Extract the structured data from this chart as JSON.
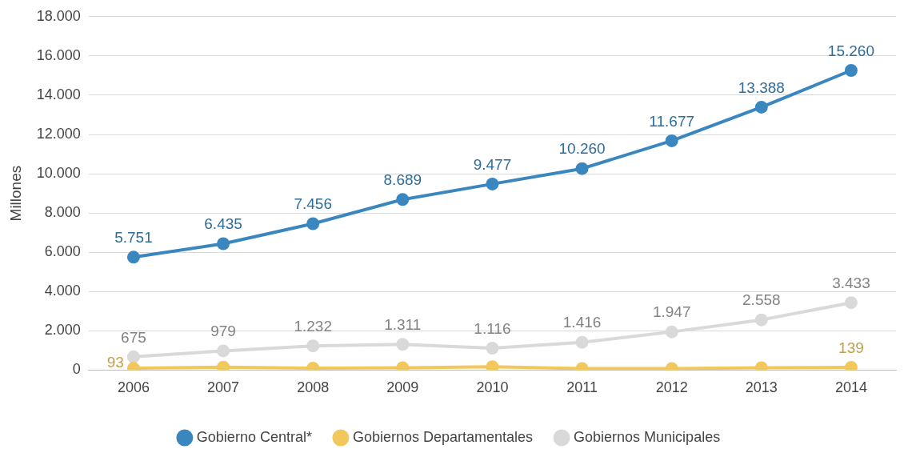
{
  "chart_data": {
    "type": "line",
    "ylabel": "Millones",
    "categories": [
      "2006",
      "2007",
      "2008",
      "2009",
      "2010",
      "2011",
      "2012",
      "2013",
      "2014"
    ],
    "ylim": [
      0,
      18000
    ],
    "yticks": [
      0,
      {
        "value": 2000,
        "label": "2.000"
      },
      {
        "value": 4000,
        "label": "4.000"
      },
      {
        "value": 6000,
        "label": "6.000"
      },
      {
        "value": 8000,
        "label": "8.000"
      },
      {
        "value": 10000,
        "label": "10.000"
      },
      {
        "value": 12000,
        "label": "12.000"
      },
      {
        "value": 14000,
        "label": "14.000"
      },
      {
        "value": 16000,
        "label": "16.000"
      },
      {
        "value": 18000,
        "label": "18.000"
      }
    ],
    "grid": "y",
    "legend": "bottom",
    "marker": "circle",
    "line_style": "solid",
    "series": [
      {
        "name": "Gobierno Central*",
        "color": "#3a87c0",
        "values": [
          5751,
          6435,
          7456,
          8689,
          9477,
          10260,
          11677,
          13388,
          15260
        ],
        "value_labels": [
          "5.751",
          "6.435",
          "7.456",
          "8.689",
          "9.477",
          "10.260",
          "11.677",
          "13.388",
          "15.260"
        ]
      },
      {
        "name": "Gobiernos Departamentales",
        "color": "#f2c75c",
        "values": [
          93,
          150,
          100,
          120,
          170,
          80,
          80,
          120,
          139
        ],
        "value_labels": [
          "93",
          null,
          null,
          null,
          null,
          null,
          null,
          null,
          "139"
        ]
      },
      {
        "name": "Gobiernos Municipales",
        "color": "#d9d9d9",
        "values": [
          675,
          979,
          1232,
          1311,
          1116,
          1416,
          1947,
          2558,
          3433
        ],
        "value_labels": [
          "675",
          "979",
          "1.232",
          "1.311",
          "1.116",
          "1.416",
          "1.947",
          "2.558",
          "3.433"
        ]
      }
    ]
  }
}
